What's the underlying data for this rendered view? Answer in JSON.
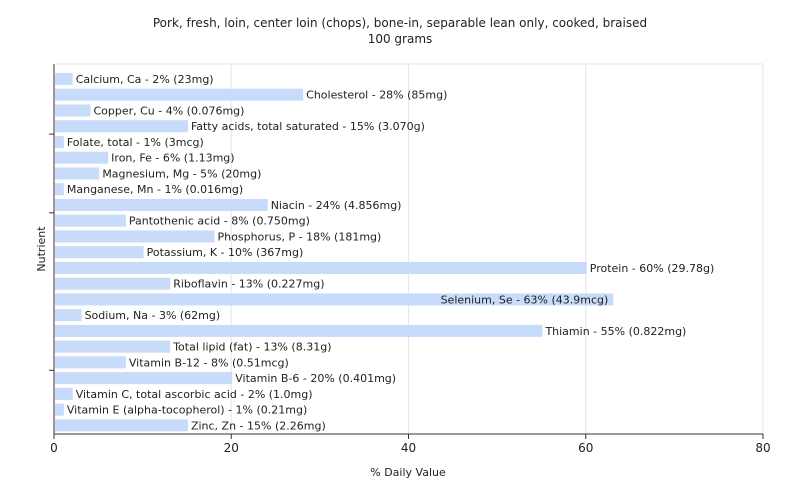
{
  "chart_data": {
    "type": "bar",
    "orientation": "horizontal",
    "title": "Pork, fresh, loin, center loin (chops), bone-in, separable lean only, cooked, braised",
    "subtitle": "100 grams",
    "xlabel": "% Daily Value",
    "ylabel": "Nutrient",
    "xlim": [
      0,
      80
    ],
    "xticks": [
      "0",
      "20",
      "40",
      "60",
      "80"
    ],
    "grid": true,
    "bar_color": "#c6dcfa",
    "categories": [
      "Calcium, Ca",
      "Cholesterol",
      "Copper, Cu",
      "Fatty acids, total saturated",
      "Folate, total",
      "Iron, Fe",
      "Magnesium, Mg",
      "Manganese, Mn",
      "Niacin",
      "Pantothenic acid",
      "Phosphorus, P",
      "Potassium, K",
      "Protein",
      "Riboflavin",
      "Selenium, Se",
      "Sodium, Na",
      "Thiamin",
      "Total lipid (fat)",
      "Vitamin B-12",
      "Vitamin B-6",
      "Vitamin C, total ascorbic acid",
      "Vitamin E (alpha-tocopherol)",
      "Zinc, Zn"
    ],
    "values": [
      2,
      28,
      4,
      15,
      1,
      6,
      5,
      1,
      24,
      8,
      18,
      10,
      60,
      13,
      63,
      3,
      55,
      13,
      8,
      20,
      2,
      1,
      15
    ],
    "labels": [
      "Calcium, Ca - 2% (23mg)",
      "Cholesterol - 28% (85mg)",
      "Copper, Cu - 4% (0.076mg)",
      "Fatty acids, total saturated - 15% (3.070g)",
      "Folate, total - 1% (3mcg)",
      "Iron, Fe - 6% (1.13mg)",
      "Magnesium, Mg - 5% (20mg)",
      "Manganese, Mn - 1% (0.016mg)",
      "Niacin - 24% (4.856mg)",
      "Pantothenic acid - 8% (0.750mg)",
      "Phosphorus, P - 18% (181mg)",
      "Potassium, K - 10% (367mg)",
      "Protein - 60% (29.78g)",
      "Riboflavin - 13% (0.227mg)",
      "Selenium, Se - 63% (43.9mcg)",
      "Sodium, Na - 3% (62mg)",
      "Thiamin - 55% (0.822mg)",
      "Total lipid (fat) - 13% (8.31g)",
      "Vitamin B-12 - 8% (0.51mcg)",
      "Vitamin B-6 - 20% (0.401mg)",
      "Vitamin C, total ascorbic acid - 2% (1.0mg)",
      "Vitamin E (alpha-tocopherol) - 1% (0.21mg)",
      "Zinc, Zn - 15% (2.26mg)"
    ]
  }
}
